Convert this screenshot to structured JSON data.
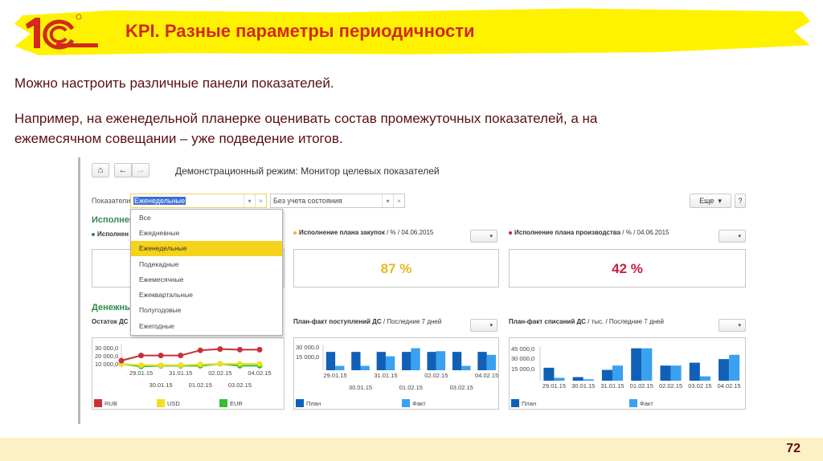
{
  "slide": {
    "title": "KPI. Разные параметры периодичности",
    "paragraph1": "Можно настроить различные панели показателей.",
    "paragraph2_line1": "Например, на еженедельной планерке оценивать состав промежуточных показателей, а на",
    "paragraph2_line2": "ежемесячном совещании – уже подведение итогов.",
    "page_number": "72",
    "title_color": "#d2281e",
    "text_color": "#5a1010"
  },
  "app": {
    "window_title": "Демонстрационный режим: Монитор целевых показателей",
    "nav": {
      "home_icon": "⌂",
      "back_icon": "←",
      "forward_icon": "→"
    },
    "filter": {
      "label": "Показатели:",
      "value": "Еженедельные",
      "state_value": "Без учета состояния",
      "dropdown_icon": "▾",
      "clear_icon": "×"
    },
    "more_button": "Еще",
    "help_button": "?",
    "dropdown_options": [
      "Все",
      "Ежедневные",
      "Еженедельные",
      "Подекадные",
      "Ежемесячные",
      "Ежеквартальные",
      "Полугодовые",
      "Ежегодные"
    ],
    "dropdown_selected_index": 2,
    "sections": {
      "section1_title": "Исполнен",
      "section2_title": "Денежны"
    },
    "widgets": [
      {
        "title": "Исполнен",
        "subtitle": "",
        "value": "",
        "dot_color": "#2e8a4a"
      },
      {
        "title": "Исполнение плана закупок",
        "subtitle": " / % / 04.06.2015",
        "value": "87 %",
        "value_color": "#e8b820",
        "dot_color": "#e8b820"
      },
      {
        "title": "Исполнение плана производства",
        "subtitle": " / % / 04.06.2015",
        "value": "42 %",
        "value_color": "#c8203c",
        "dot_color": "#c8203c"
      }
    ],
    "chart_titles": {
      "remaining": "Остаток ДС",
      "income": "План-факт поступлений ДС",
      "income_sub": " / Последние 7 дней",
      "expense": "План-факт списаний ДС",
      "expense_sub": " / тыс. / Последние 7 дней"
    }
  },
  "chart_data": [
    {
      "type": "line",
      "title": "Остаток ДС",
      "categories": [
        "29.01.15",
        "30.01.15",
        "31.01.15",
        "01.02.15",
        "02.02.15",
        "03.02.15",
        "04.02.15"
      ],
      "yticks": [
        "30 000,0",
        "20 000,0",
        "10 000,0"
      ],
      "ylim": [
        0,
        35000
      ],
      "series": [
        {
          "name": "RUB",
          "color": "#c8303a",
          "values": [
            10000,
            18000,
            18000,
            18000,
            26000,
            28000,
            27000,
            27000
          ]
        },
        {
          "name": "USD",
          "color": "#f0e020",
          "values": [
            5000,
            3000,
            3000,
            3000,
            4000,
            5000,
            5000,
            5000
          ]
        },
        {
          "name": "EUR",
          "color": "#30c030",
          "values": [
            5000,
            1000,
            2000,
            2000,
            2000,
            5000,
            2000,
            2000
          ]
        }
      ],
      "x_points": [
        "",
        "29.01.15",
        "30.01.15",
        "31.01.15",
        "01.02.15",
        "02.02.15",
        "03.02.15",
        "04.02.15"
      ],
      "legend": [
        "RUB",
        "USD",
        "EUR"
      ]
    },
    {
      "type": "bar",
      "title": "План-факт поступлений ДС / Последние 7 дней",
      "categories": [
        "29.01.15",
        "30.01.15",
        "31.01.15",
        "01.02.15",
        "02.02.15",
        "03.02.15",
        "04.02.15"
      ],
      "yticks": [
        "30 000,0",
        "15 000,0"
      ],
      "ylim": [
        0,
        35000
      ],
      "series": [
        {
          "name": "План",
          "color": "#1060b8",
          "values": [
            25000,
            25000,
            25000,
            25000,
            25000,
            25000,
            25000
          ]
        },
        {
          "name": "Факт",
          "color": "#3aa0f0",
          "values": [
            6000,
            6000,
            19000,
            30000,
            26000,
            6000,
            21000
          ]
        }
      ],
      "legend": [
        "План",
        "Факт"
      ]
    },
    {
      "type": "bar",
      "title": "План-факт списаний ДС / тыс. / Последние 7 дней",
      "categories": [
        "29.01.15",
        "30.01.15",
        "31.01.15",
        "01.02.15",
        "02.02.15",
        "03.02.15",
        "04.02.15"
      ],
      "yticks": [
        "45 000,0",
        "30 000,0",
        "15 000,0"
      ],
      "ylim": [
        0,
        48000
      ],
      "series": [
        {
          "name": "План",
          "color": "#1060b8",
          "values": [
            18000,
            5000,
            15000,
            45000,
            21000,
            25000,
            30000
          ]
        },
        {
          "name": "Факт",
          "color": "#3aa0f0",
          "values": [
            4000,
            2000,
            21000,
            45000,
            21000,
            6000,
            36000
          ]
        }
      ],
      "legend": [
        "План",
        "Факт"
      ]
    }
  ]
}
